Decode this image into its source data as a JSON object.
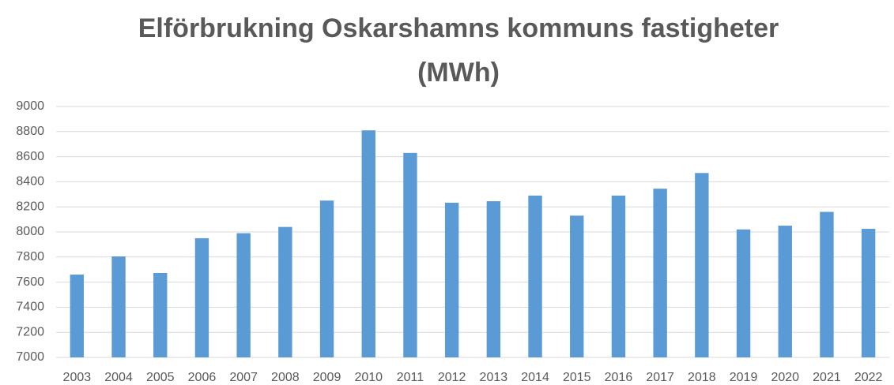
{
  "chart_data": {
    "type": "bar",
    "title": "Elförbrukning Oskarshamns kommuns fastigheter (MWh)",
    "categories": [
      "2003",
      "2004",
      "2005",
      "2006",
      "2007",
      "2008",
      "2009",
      "2010",
      "2011",
      "2012",
      "2013",
      "2014",
      "2015",
      "2016",
      "2017",
      "2018",
      "2019",
      "2020",
      "2021",
      "2022"
    ],
    "values": [
      7660,
      7805,
      7673,
      7950,
      7990,
      8040,
      8250,
      8810,
      8630,
      8233,
      8245,
      8290,
      8130,
      8290,
      8345,
      8470,
      8020,
      8050,
      8160,
      8025
    ],
    "color": "#5b9bd5",
    "ylim": [
      7000,
      9000
    ],
    "yticks": [
      7000,
      7200,
      7400,
      7600,
      7800,
      8000,
      8200,
      8400,
      8600,
      8800,
      9000
    ],
    "grid": true
  }
}
